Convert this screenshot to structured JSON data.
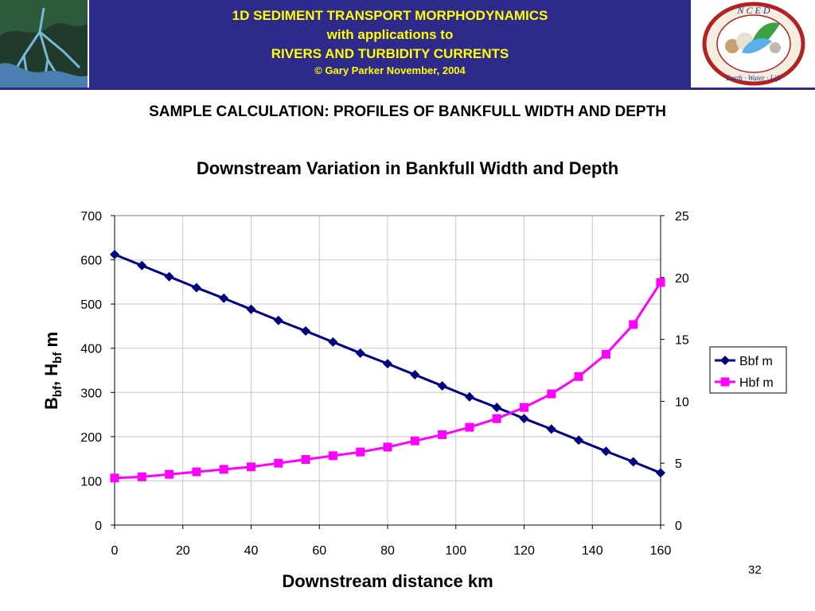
{
  "header": {
    "title_line1": "1D SEDIMENT TRANSPORT MORPHODYNAMICS",
    "title_line2": "with applications to",
    "title_line3": "RIVERS AND TURBIDITY CURRENTS",
    "copyright": "© Gary Parker November, 2004",
    "logo_text": "N C E D",
    "logo_subtext": "Earth · Water · Life"
  },
  "heading": "SAMPLE CALCULATION: PROFILES OF BANKFULL WIDTH AND DEPTH",
  "page_number": "32",
  "colors": {
    "banner": "#2e2a8c",
    "banner_text": "#ffff00",
    "bbf_series": "#000080",
    "hbf_series": "#ff00ff"
  },
  "chart_data": {
    "type": "line",
    "title": "Downstream Variation in Bankfull Width and Depth",
    "xlabel": "Downstream distance km",
    "ylabel": {
      "main1": "B",
      "sub1": "bf",
      "sep": ", ",
      "main2": "H",
      "sub2": "bf",
      "unit": " m"
    },
    "xlim": [
      0,
      160
    ],
    "ylim_left": [
      0,
      700
    ],
    "ylim_right": [
      0,
      25
    ],
    "x_ticks": [
      "0",
      "20",
      "40",
      "60",
      "80",
      "100",
      "120",
      "140",
      "160"
    ],
    "y_ticks_left": [
      "0",
      "100",
      "200",
      "300",
      "400",
      "500",
      "600",
      "700"
    ],
    "y_ticks_right": [
      "0",
      "5",
      "10",
      "15",
      "20",
      "25"
    ],
    "grid": true,
    "legend_position": "right",
    "x": [
      0,
      8,
      16,
      24,
      32,
      40,
      48,
      56,
      64,
      72,
      80,
      88,
      96,
      104,
      112,
      120,
      128,
      136,
      144,
      152,
      160
    ],
    "series": [
      {
        "name": "Bbf m",
        "axis": "left",
        "marker": "diamond",
        "values": [
          612,
          587,
          562,
          537,
          513,
          488,
          463,
          439,
          414,
          389,
          365,
          340,
          315,
          290,
          266,
          241,
          217,
          192,
          167,
          143,
          118
        ]
      },
      {
        "name": "Hbf m",
        "axis": "right",
        "marker": "square",
        "values": [
          3.8,
          3.9,
          4.1,
          4.3,
          4.5,
          4.7,
          5.0,
          5.3,
          5.6,
          5.9,
          6.3,
          6.8,
          7.3,
          7.9,
          8.6,
          9.5,
          10.6,
          12.0,
          13.8,
          16.2,
          19.6
        ]
      }
    ]
  }
}
